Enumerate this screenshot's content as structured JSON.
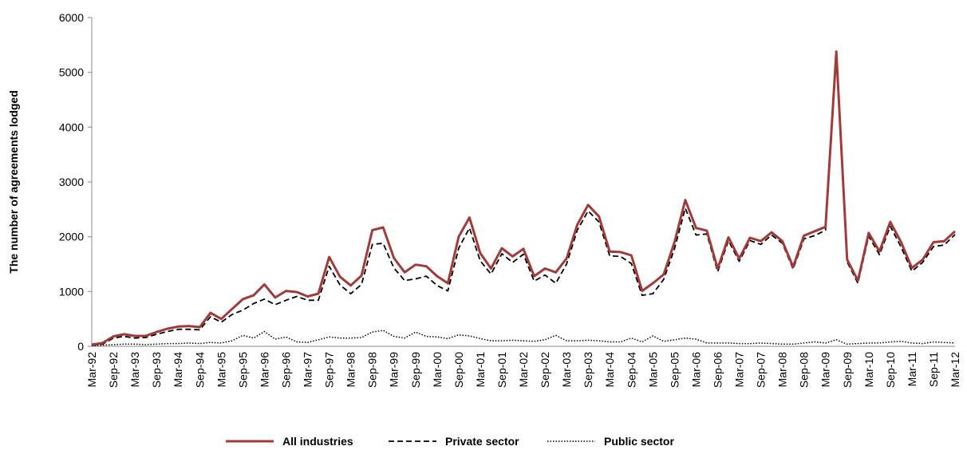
{
  "chart_data": {
    "type": "line",
    "y_label": "The number of agreements lodged",
    "categories": [
      "Mar-92",
      null,
      "Sep-92",
      null,
      "Mar-93",
      null,
      "Sep-93",
      null,
      "Mar-94",
      null,
      "Sep-94",
      null,
      "Mar-95",
      null,
      "Sep-95",
      null,
      "Mar-96",
      null,
      "Sep-96",
      null,
      "Mar-97",
      null,
      "Sep-97",
      null,
      "Mar-98",
      null,
      "Sep-98",
      null,
      "Mar-99",
      null,
      "Sep-99",
      null,
      "Mar-00",
      null,
      "Sep-00",
      null,
      "Mar-01",
      null,
      "Sep-01",
      null,
      "Mar-02",
      null,
      "Sep-02",
      null,
      "Mar-03",
      null,
      "Sep-03",
      null,
      "Mar-04",
      null,
      "Sep-04",
      null,
      "Mar-05",
      null,
      "Sep-05",
      null,
      "Mar-06",
      null,
      "Sep-06",
      null,
      "Mar-07",
      null,
      "Sep-07",
      null,
      "Mar-08",
      null,
      "Sep-08",
      null,
      "Mar-09",
      null,
      "Sep-09",
      null,
      "Mar-10",
      null,
      "Sep-10",
      null,
      "Mar-11",
      null,
      "Sep-11",
      null,
      "Mar-12"
    ],
    "series": [
      {
        "name": "All industries",
        "color": "#a33a3a",
        "style": "solid",
        "values": [
          30,
          60,
          180,
          220,
          190,
          190,
          260,
          320,
          360,
          370,
          350,
          610,
          500,
          680,
          860,
          930,
          1130,
          890,
          1010,
          990,
          910,
          960,
          1630,
          1270,
          1110,
          1290,
          2120,
          2170,
          1610,
          1350,
          1490,
          1460,
          1280,
          1150,
          2000,
          2350,
          1700,
          1420,
          1790,
          1640,
          1780,
          1280,
          1420,
          1350,
          1600,
          2220,
          2580,
          2370,
          1730,
          1720,
          1660,
          1010,
          1150,
          1310,
          1900,
          2670,
          2160,
          2110,
          1420,
          1990,
          1600,
          1980,
          1920,
          2080,
          1920,
          1450,
          2020,
          2100,
          2180,
          5380,
          1580,
          1200,
          2070,
          1730,
          2270,
          1900,
          1430,
          1580,
          1900,
          1920,
          2100
        ]
      },
      {
        "name": "Private sector",
        "color": "#000000",
        "style": "dashed",
        "values": [
          20,
          40,
          150,
          180,
          150,
          160,
          220,
          270,
          310,
          310,
          300,
          540,
          440,
          580,
          660,
          780,
          860,
          760,
          840,
          910,
          840,
          840,
          1460,
          1120,
          960,
          1130,
          1860,
          1880,
          1430,
          1200,
          1230,
          1280,
          1110,
          1010,
          1790,
          2160,
          1560,
          1320,
          1690,
          1530,
          1680,
          1190,
          1300,
          1150,
          1500,
          2120,
          2470,
          2270,
          1650,
          1640,
          1510,
          930,
          960,
          1220,
          1780,
          2520,
          2030,
          2050,
          1360,
          1930,
          1550,
          1930,
          1860,
          2030,
          1880,
          1410,
          1960,
          2020,
          2120,
          5260,
          1540,
          1150,
          2010,
          1670,
          2190,
          1810,
          1370,
          1530,
          1820,
          1850,
          2040
        ]
      },
      {
        "name": "Public sector",
        "color": "#000000",
        "style": "dotted",
        "values": [
          10,
          20,
          30,
          40,
          40,
          30,
          40,
          50,
          50,
          60,
          50,
          70,
          60,
          100,
          200,
          150,
          270,
          130,
          170,
          80,
          70,
          120,
          170,
          150,
          150,
          160,
          260,
          290,
          180,
          150,
          260,
          180,
          170,
          140,
          210,
          190,
          140,
          100,
          100,
          110,
          100,
          90,
          120,
          200,
          100,
          100,
          110,
          100,
          80,
          80,
          150,
          80,
          190,
          90,
          120,
          150,
          130,
          60,
          60,
          60,
          50,
          50,
          60,
          50,
          40,
          40,
          60,
          80,
          60,
          120,
          40,
          50,
          60,
          60,
          80,
          90,
          60,
          50,
          80,
          70,
          60
        ]
      }
    ],
    "ylim": [
      0,
      6000
    ],
    "yticks": [
      0,
      1000,
      2000,
      3000,
      4000,
      5000,
      6000
    ],
    "grid": false,
    "legend": "bottom"
  }
}
